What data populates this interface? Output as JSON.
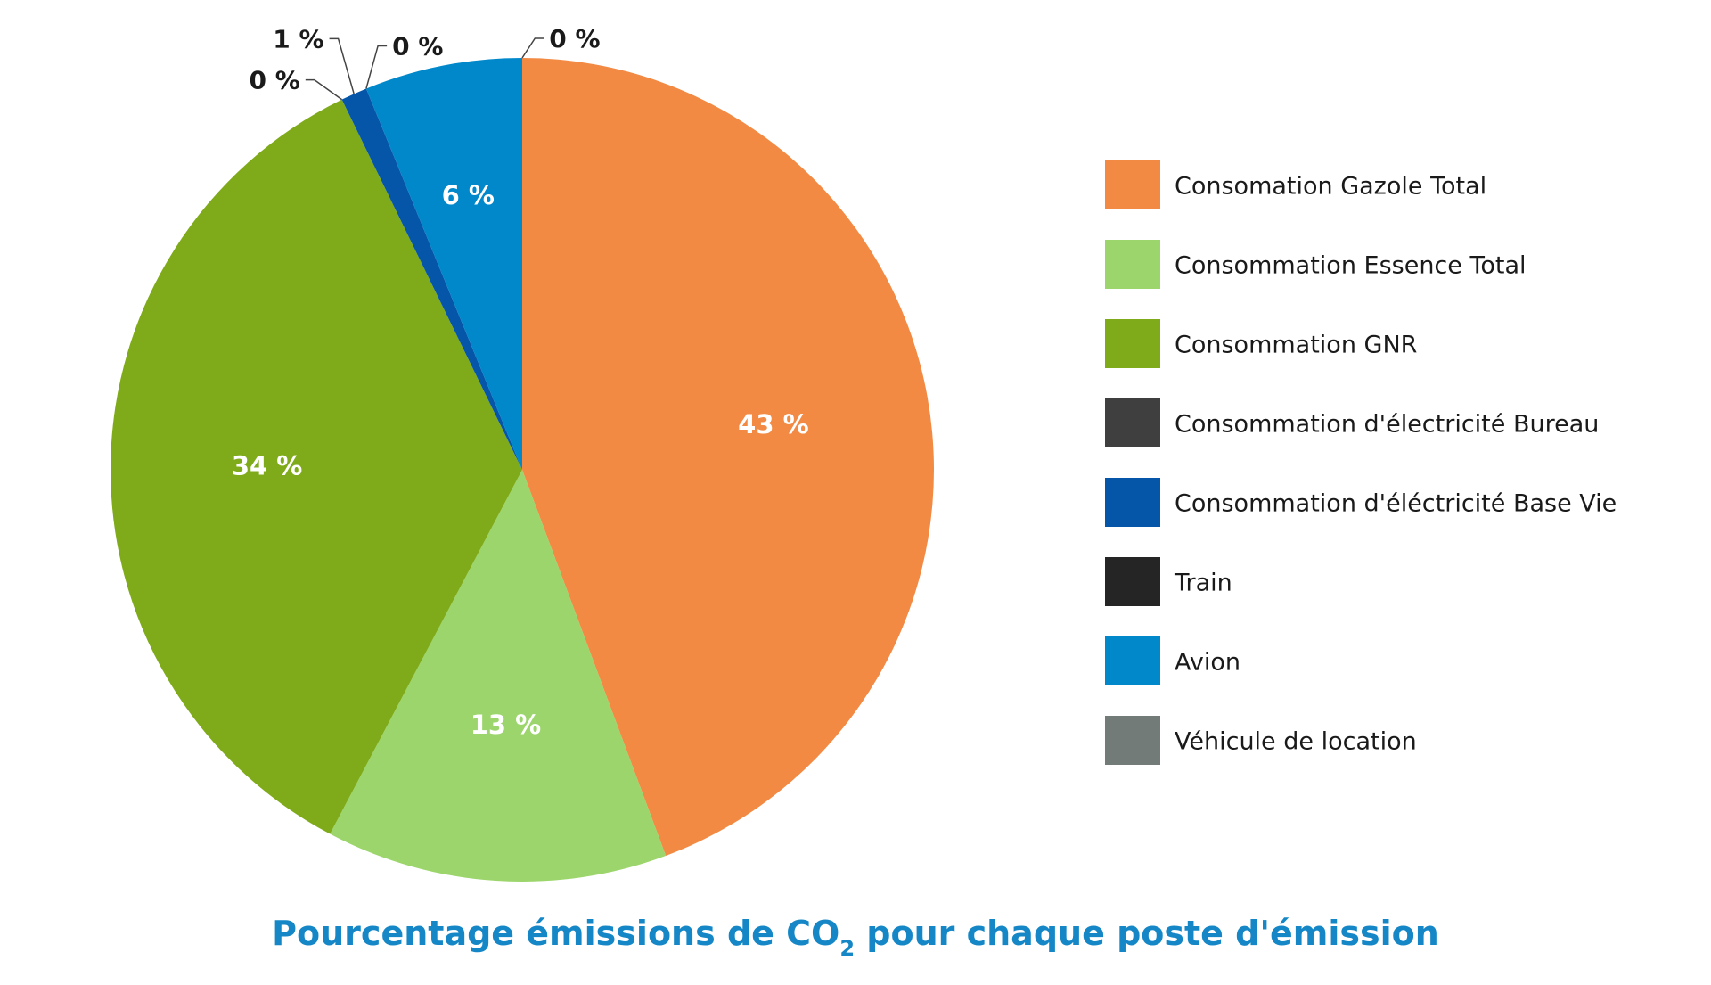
{
  "chart_data": {
    "type": "pie",
    "title": "Pourcentage émissions de CO",
    "title_subscript": "2",
    "title_suffix": " pour chaque poste d'émission",
    "start": "12 o'clock",
    "direction": "clockwise",
    "legend_position": "right",
    "slices": [
      {
        "name": "Consomation Gazole Total",
        "value": 43,
        "label": "43 %",
        "color": "#f28a44",
        "label_mode": "inside"
      },
      {
        "name": "Consommation Essence Total",
        "value": 13,
        "label": "13 %",
        "color": "#9bd56b",
        "label_mode": "inside"
      },
      {
        "name": "Consommation GNR",
        "value": 34,
        "label": "34 %",
        "color": "#7fab1b",
        "label_mode": "inside"
      },
      {
        "name": "Consommation d'électricité Bureau",
        "value": 0,
        "label": "0 %",
        "color": "#3f3f3f",
        "label_mode": "callout"
      },
      {
        "name": "Consommation d'éléctricité Base Vie",
        "value": 1,
        "label": "1 %",
        "color": "#0556a8",
        "label_mode": "callout"
      },
      {
        "name": "Train",
        "value": 0,
        "label": "0 %",
        "color": "#252525",
        "label_mode": "callout"
      },
      {
        "name": "Avion",
        "value": 6,
        "label": "6 %",
        "color": "#0088cb",
        "label_mode": "inside"
      },
      {
        "name": "Véhicule de location",
        "value": 0,
        "label": "0 %",
        "color": "#737b78",
        "label_mode": "callout"
      }
    ]
  }
}
